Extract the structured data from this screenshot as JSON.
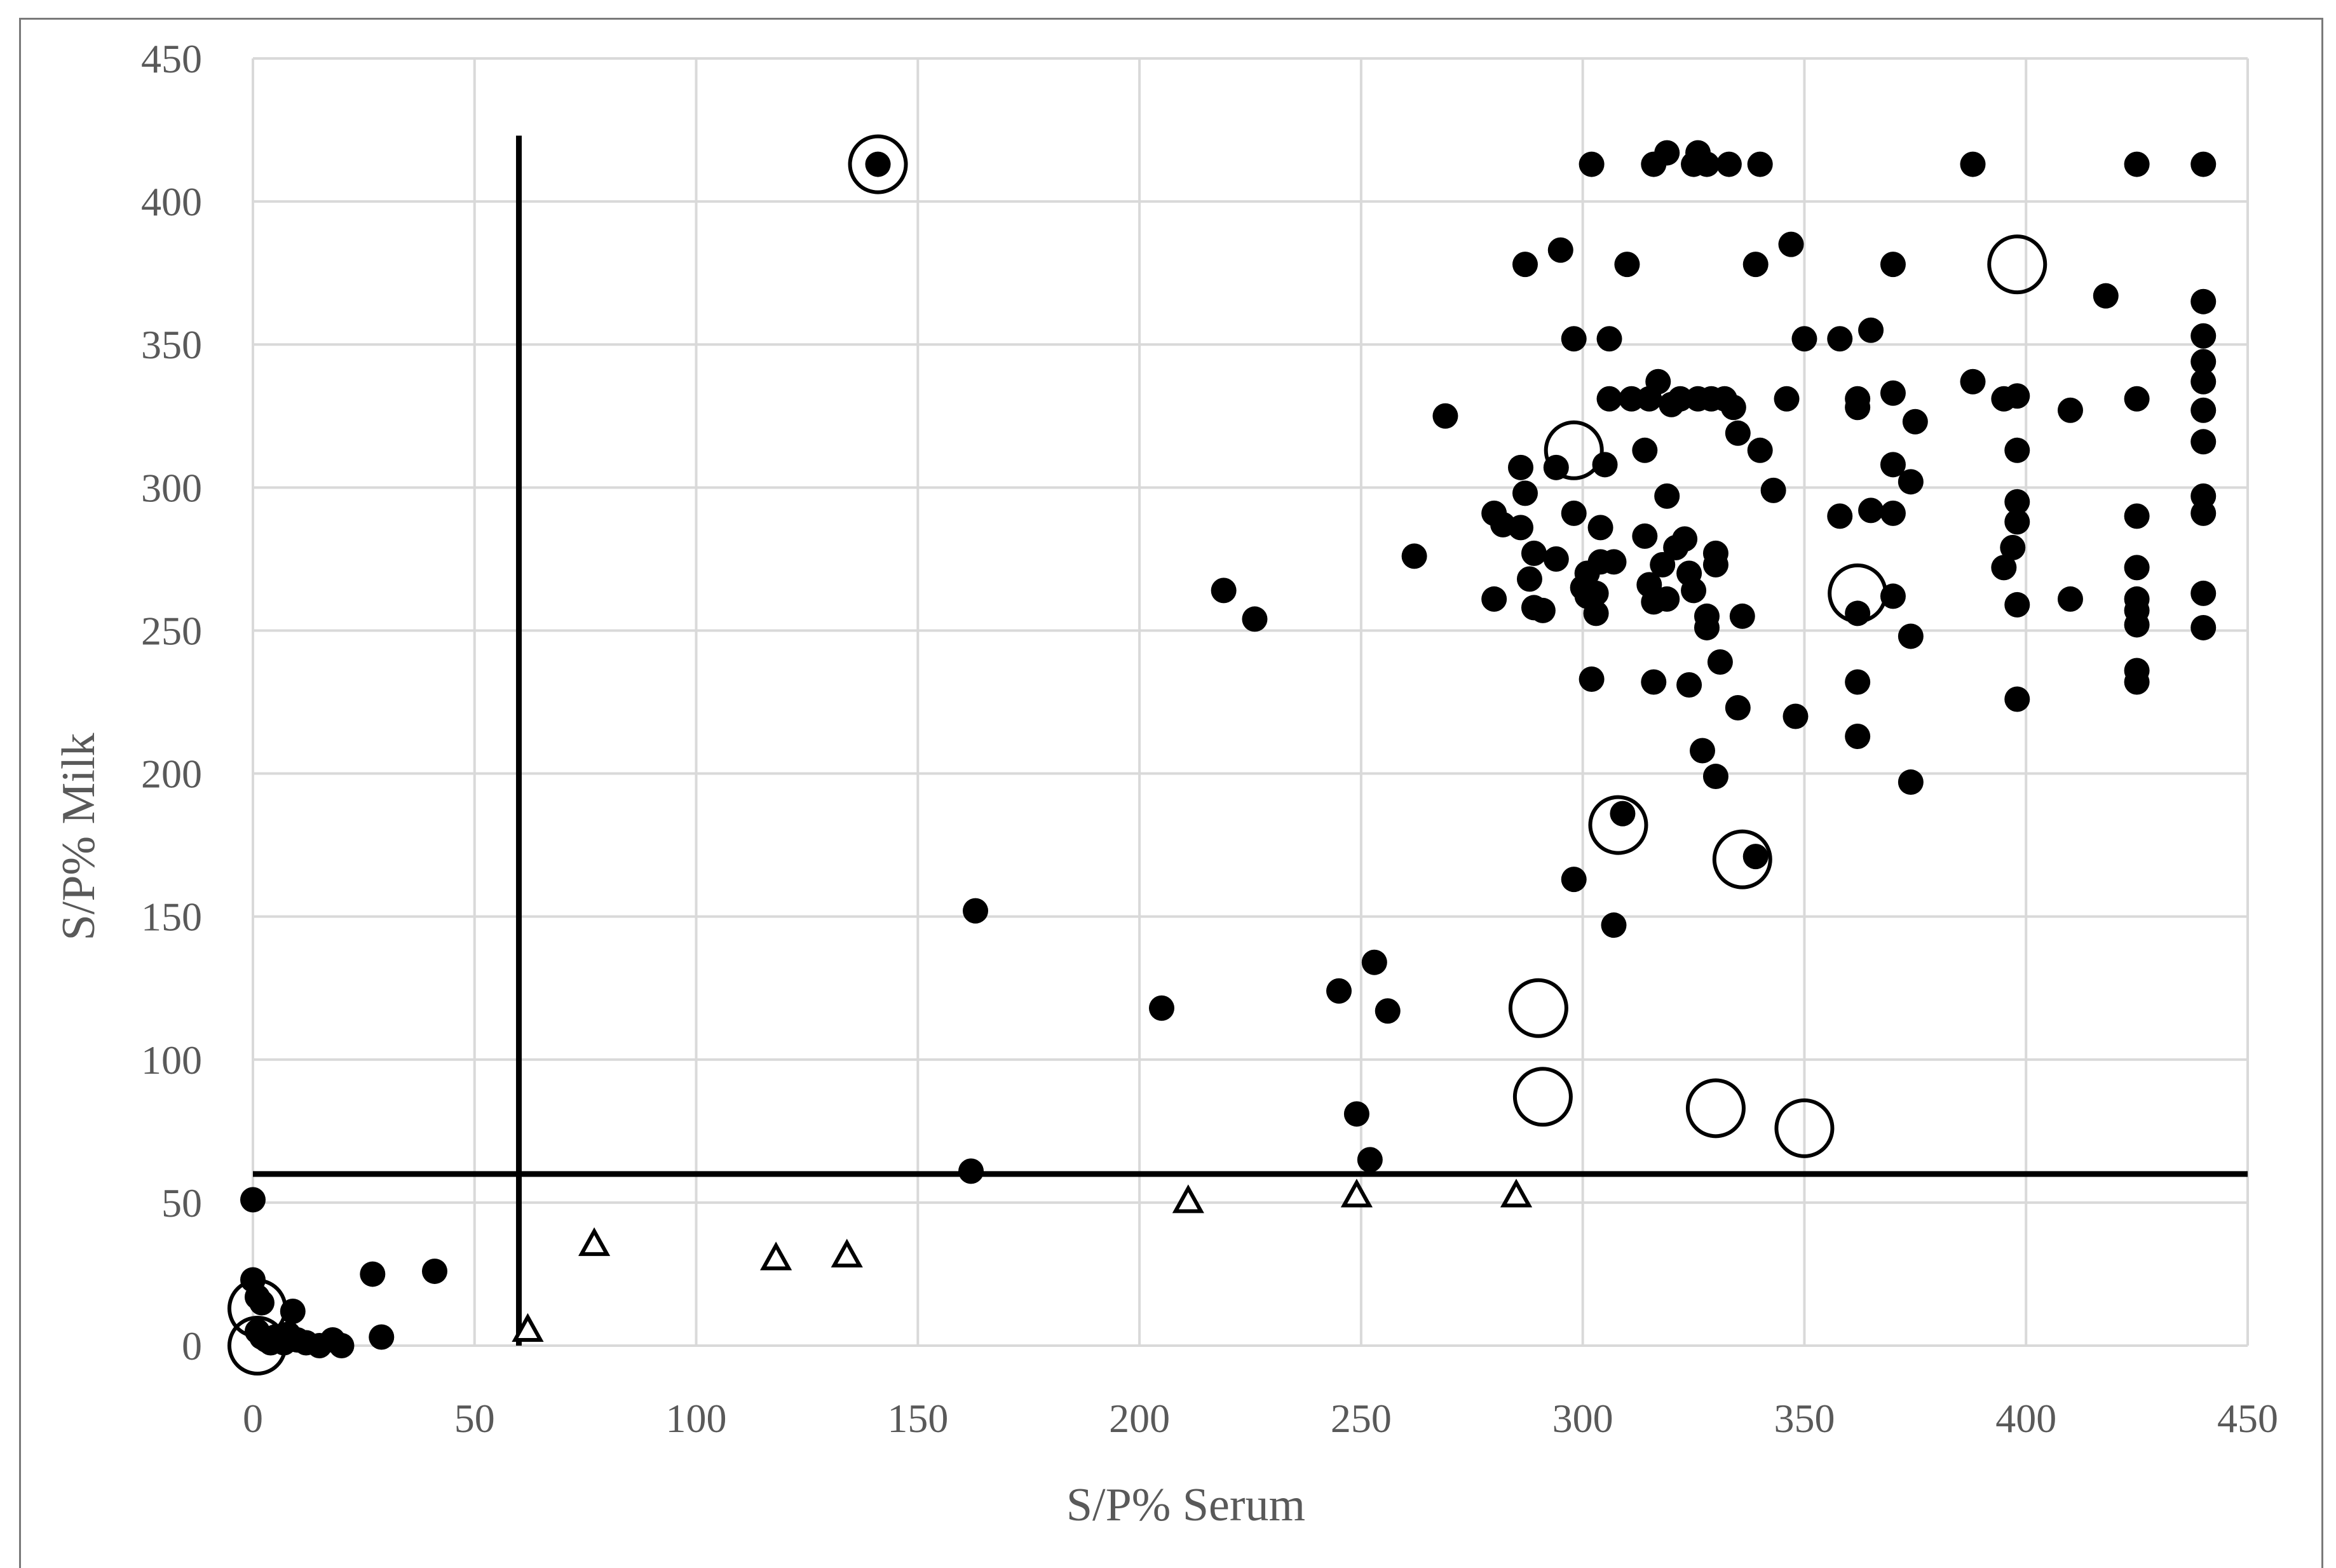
{
  "chart_data": {
    "type": "scatter",
    "title": "",
    "xlabel": "S/P% Serum",
    "ylabel": "S/P% Milk",
    "xlim": [
      0,
      450
    ],
    "ylim": [
      0,
      450
    ],
    "x_ticks": [
      0,
      50,
      100,
      150,
      200,
      250,
      300,
      350,
      400,
      450
    ],
    "y_ticks": [
      0,
      50,
      100,
      150,
      200,
      250,
      300,
      350,
      400,
      450
    ],
    "grid": true,
    "legend": "none",
    "cutoff_lines": [
      {
        "axis": "x",
        "value": 60,
        "y_range": [
          0,
          423
        ]
      },
      {
        "axis": "y",
        "value": 60,
        "x_range": [
          0,
          450
        ]
      }
    ],
    "series": [
      {
        "marker": "filled-circle",
        "points": [
          [
            0,
            51
          ],
          [
            0,
            23
          ],
          [
            1,
            17
          ],
          [
            2,
            15
          ],
          [
            1,
            5
          ],
          [
            2,
            3
          ],
          [
            3,
            2
          ],
          [
            4,
            1
          ],
          [
            5,
            3
          ],
          [
            6,
            2
          ],
          [
            7,
            1
          ],
          [
            8,
            4
          ],
          [
            9,
            12
          ],
          [
            10,
            2
          ],
          [
            12,
            1
          ],
          [
            15,
            0
          ],
          [
            18,
            2
          ],
          [
            20,
            0
          ],
          [
            27,
            25
          ],
          [
            29,
            3
          ],
          [
            41,
            26
          ],
          [
            141,
            413
          ],
          [
            162,
            61
          ],
          [
            163,
            152
          ],
          [
            205,
            118
          ],
          [
            219,
            264
          ],
          [
            226,
            254
          ],
          [
            245,
            124
          ],
          [
            249,
            81
          ],
          [
            252,
            65
          ],
          [
            253,
            134
          ],
          [
            256,
            117
          ],
          [
            262,
            276
          ],
          [
            269,
            325
          ],
          [
            280,
            291
          ],
          [
            280,
            261
          ],
          [
            282,
            287
          ],
          [
            286,
            307
          ],
          [
            286,
            286
          ],
          [
            287,
            298
          ],
          [
            287,
            378
          ],
          [
            288,
            268
          ],
          [
            289,
            258
          ],
          [
            289,
            277
          ],
          [
            291,
            257
          ],
          [
            294,
            275
          ],
          [
            294,
            307
          ],
          [
            295,
            383
          ],
          [
            298,
            352
          ],
          [
            298,
            291
          ],
          [
            298,
            163
          ],
          [
            300,
            265
          ],
          [
            301,
            262
          ],
          [
            301,
            270
          ],
          [
            302,
            413
          ],
          [
            302,
            233
          ],
          [
            303,
            256
          ],
          [
            303,
            263
          ],
          [
            304,
            286
          ],
          [
            304,
            274
          ],
          [
            305,
            308
          ],
          [
            306,
            331
          ],
          [
            306,
            352
          ],
          [
            307,
            147
          ],
          [
            307,
            274
          ],
          [
            309,
            186
          ],
          [
            310,
            378
          ],
          [
            311,
            331
          ],
          [
            314,
            313
          ],
          [
            314,
            283
          ],
          [
            315,
            331
          ],
          [
            315,
            266
          ],
          [
            316,
            413
          ],
          [
            316,
            260
          ],
          [
            316,
            232
          ],
          [
            317,
            337
          ],
          [
            318,
            273
          ],
          [
            319,
            297
          ],
          [
            319,
            417
          ],
          [
            319,
            261
          ],
          [
            320,
            329
          ],
          [
            321,
            279
          ],
          [
            322,
            331
          ],
          [
            323,
            282
          ],
          [
            324,
            270
          ],
          [
            324,
            231
          ],
          [
            325,
            264
          ],
          [
            325,
            413
          ],
          [
            326,
            417
          ],
          [
            326,
            331
          ],
          [
            327,
            208
          ],
          [
            328,
            413
          ],
          [
            328,
            251
          ],
          [
            328,
            255
          ],
          [
            329,
            331
          ],
          [
            330,
            273
          ],
          [
            330,
            277
          ],
          [
            330,
            199
          ],
          [
            331,
            239
          ],
          [
            332,
            331
          ],
          [
            333,
            413
          ],
          [
            334,
            328
          ],
          [
            335,
            319
          ],
          [
            335,
            223
          ],
          [
            336,
            255
          ],
          [
            339,
            378
          ],
          [
            339,
            171
          ],
          [
            340,
            313
          ],
          [
            340,
            413
          ],
          [
            343,
            299
          ],
          [
            346,
            331
          ],
          [
            347,
            385
          ],
          [
            348,
            220
          ],
          [
            350,
            352
          ],
          [
            358,
            290
          ],
          [
            358,
            352
          ],
          [
            362,
            331
          ],
          [
            362,
            328
          ],
          [
            362,
            256
          ],
          [
            362,
            232
          ],
          [
            362,
            213
          ],
          [
            365,
            355
          ],
          [
            365,
            292
          ],
          [
            370,
            378
          ],
          [
            370,
            333
          ],
          [
            370,
            308
          ],
          [
            370,
            291
          ],
          [
            370,
            262
          ],
          [
            374,
            302
          ],
          [
            374,
            248
          ],
          [
            374,
            197
          ],
          [
            375,
            323
          ],
          [
            388,
            413
          ],
          [
            388,
            337
          ],
          [
            395,
            331
          ],
          [
            395,
            272
          ],
          [
            397,
            279
          ],
          [
            398,
            332
          ],
          [
            398,
            313
          ],
          [
            398,
            295
          ],
          [
            398,
            288
          ],
          [
            398,
            259
          ],
          [
            398,
            226
          ],
          [
            410,
            327
          ],
          [
            410,
            261
          ],
          [
            418,
            367
          ],
          [
            425,
            413
          ],
          [
            425,
            331
          ],
          [
            425,
            290
          ],
          [
            425,
            272
          ],
          [
            425,
            261
          ],
          [
            425,
            257
          ],
          [
            425,
            252
          ],
          [
            425,
            236
          ],
          [
            425,
            232
          ],
          [
            440,
            413
          ],
          [
            440,
            365
          ],
          [
            440,
            353
          ],
          [
            440,
            344
          ],
          [
            440,
            337
          ],
          [
            440,
            327
          ],
          [
            440,
            316
          ],
          [
            440,
            297
          ],
          [
            440,
            291
          ],
          [
            440,
            263
          ],
          [
            440,
            251
          ]
        ]
      },
      {
        "marker": "circled-dot",
        "points": [
          [
            141,
            413
          ],
          [
            1,
            13
          ],
          [
            1,
            0
          ],
          [
            298,
            313
          ],
          [
            308,
            182
          ],
          [
            336,
            170
          ],
          [
            362,
            263
          ],
          [
            398,
            378
          ],
          [
            290,
            118
          ],
          [
            291,
            87
          ],
          [
            330,
            83
          ],
          [
            350,
            76
          ]
        ]
      },
      {
        "marker": "open-triangle",
        "points": [
          [
            62,
            6
          ],
          [
            77,
            36
          ],
          [
            118,
            31
          ],
          [
            134,
            32
          ],
          [
            211,
            51
          ],
          [
            249,
            53
          ],
          [
            285,
            53
          ]
        ]
      }
    ]
  }
}
